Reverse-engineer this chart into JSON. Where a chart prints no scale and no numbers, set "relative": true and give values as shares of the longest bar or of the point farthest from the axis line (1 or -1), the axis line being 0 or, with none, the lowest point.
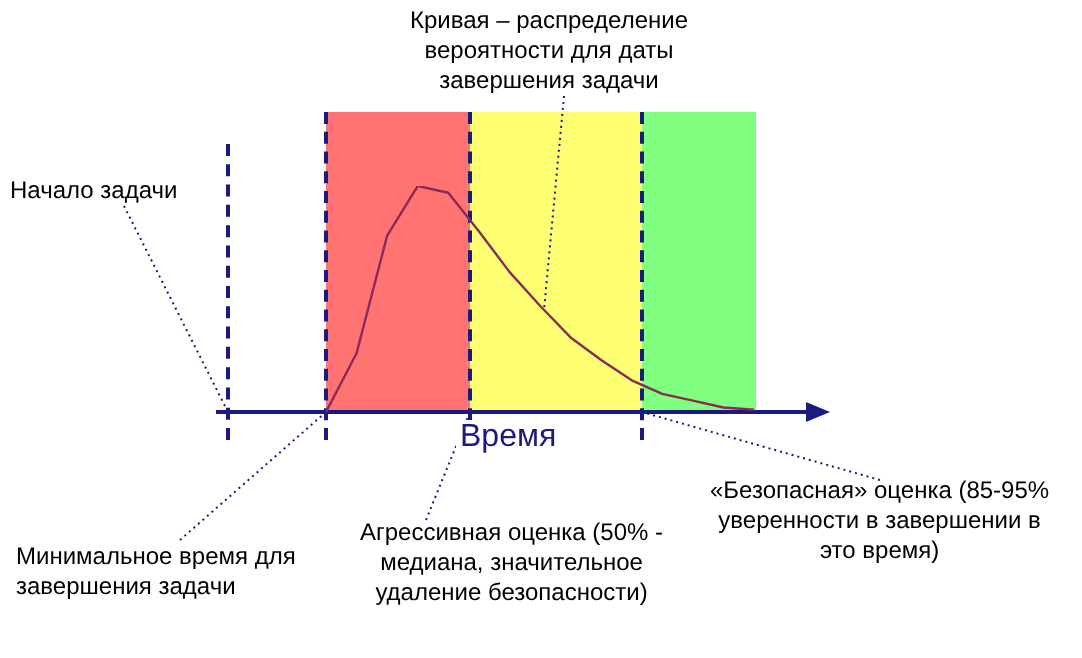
{
  "chart_data": {
    "type": "line",
    "relative": true,
    "xlabel": "Время",
    "tick_labels": false,
    "marker": "none",
    "line_style": "solid",
    "categories": [
      null,
      null,
      null,
      null,
      null,
      null,
      null,
      null,
      null,
      null,
      null,
      null,
      null,
      null,
      null
    ],
    "series": [
      {
        "color": "#8a2a55",
        "values": [
          0,
          0.26,
          0.78,
          1,
          0.97,
          0.8,
          0.62,
          0.47,
          0.33,
          0.23,
          0.14,
          0.08,
          0.05,
          0.02,
          0.01
        ]
      }
    ],
    "annotations": [
      "Кривая – распределение\nвероятности для даты\nзавершения задачи",
      "Начало задачи",
      "Минимальное время для\nзавершения задачи",
      "Агрессивная оценка (50% -\nмедиана, значительное\nудаление безопасности)",
      "«Безопасная» оценка (85-95%\nуверенности в завершении в\nэто время)"
    ]
  }
}
